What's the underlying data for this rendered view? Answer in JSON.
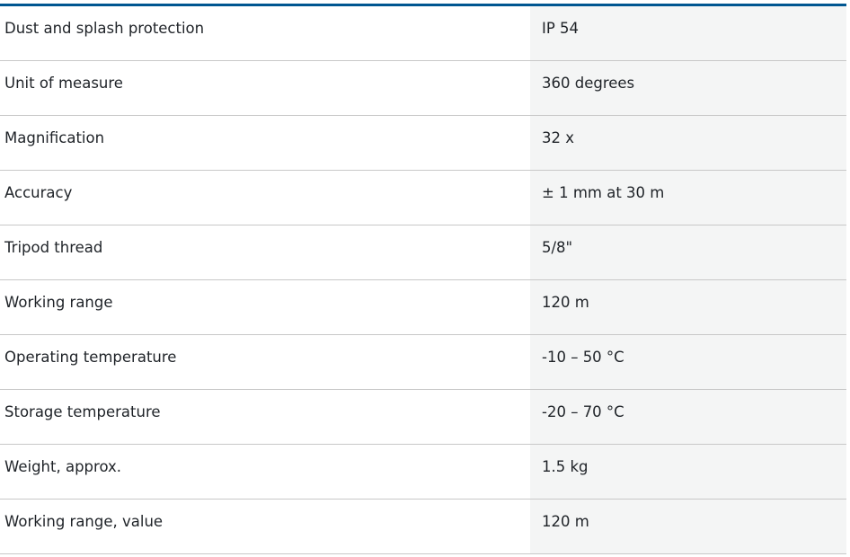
{
  "specs": [
    {
      "label": "Dust and splash protection",
      "value": "IP 54"
    },
    {
      "label": "Unit of measure",
      "value": "360 degrees"
    },
    {
      "label": "Magnification",
      "value": "32 x"
    },
    {
      "label": "Accuracy",
      "value": "± 1 mm at 30 m"
    },
    {
      "label": "Tripod thread",
      "value": "5/8\""
    },
    {
      "label": "Working range",
      "value": "120 m"
    },
    {
      "label": "Operating temperature",
      "value": "-10 – 50 °C"
    },
    {
      "label": "Storage temperature",
      "value": "-20 – 70 °C"
    },
    {
      "label": "Weight, approx.",
      "value": "1.5 kg"
    },
    {
      "label": "Working range, value",
      "value": "120 m"
    }
  ],
  "colors": {
    "accent": "#005691",
    "value_bg": "#f4f5f5",
    "divider": "#c8c8c8"
  }
}
